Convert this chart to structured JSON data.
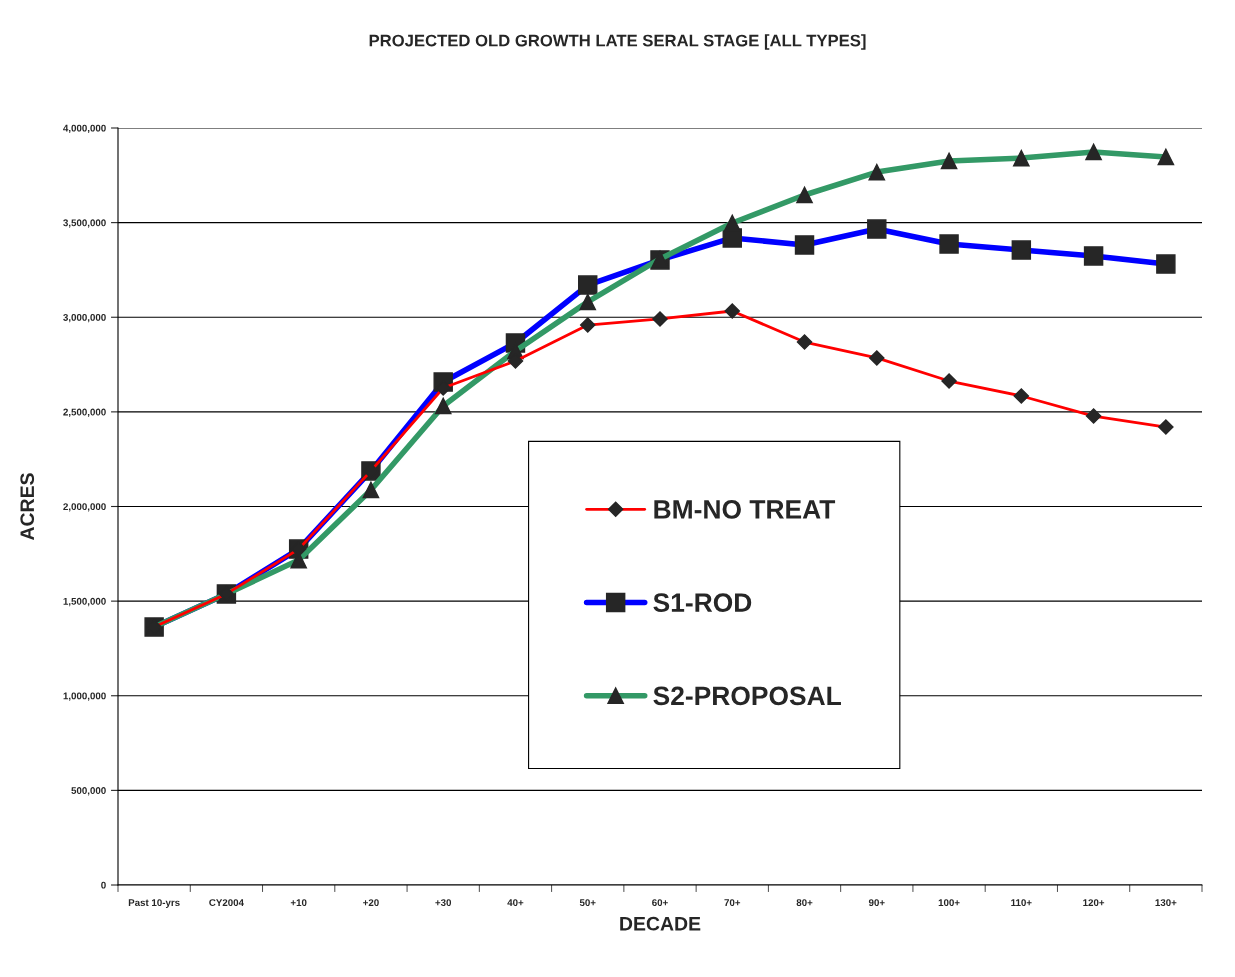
{
  "chart_data": {
    "type": "line",
    "title": "PROJECTED OLD GROWTH LATE SERAL STAGE [ALL TYPES]",
    "xlabel": "DECADE",
    "ylabel": "ACRES",
    "categories": [
      "Past 10-yrs",
      "CY2004",
      "+10",
      "+20",
      "+30",
      "40+",
      "50+",
      "60+",
      "70+",
      "80+",
      "90+",
      "100+",
      "110+",
      "120+",
      "130+"
    ],
    "series": [
      {
        "name": "BM-NO TREAT",
        "color": "#ff0000",
        "marker": "diamond",
        "values": [
          1363000,
          1538000,
          1775000,
          2188000,
          2626000,
          2769000,
          2959000,
          2991000,
          3033000,
          2869000,
          2785000,
          2663000,
          2584000,
          2478000,
          2420000
        ]
      },
      {
        "name": "S1-ROD",
        "color": "#0000ff",
        "marker": "square",
        "values": [
          1363000,
          1538000,
          1775000,
          2188000,
          2658000,
          2864000,
          3170000,
          3303000,
          3419000,
          3382000,
          3466000,
          3387000,
          3355000,
          3324000,
          3281000
        ]
      },
      {
        "name": "S2-PROPOSAL",
        "color": "#339966",
        "marker": "triangle",
        "values": [
          1363000,
          1538000,
          1717000,
          2087000,
          2531000,
          2822000,
          3081000,
          3308000,
          3498000,
          3646000,
          3767000,
          3826000,
          3841000,
          3873000,
          3847000
        ]
      }
    ],
    "ylim": [
      0,
      4000000
    ],
    "yticks": [
      {
        "value": 0,
        "label": "0"
      },
      {
        "value": 500000,
        "label": "500,000"
      },
      {
        "value": 1000000,
        "label": "1,000,000"
      },
      {
        "value": 1500000,
        "label": "1,500,000"
      },
      {
        "value": 2000000,
        "label": "2,000,000"
      },
      {
        "value": 2500000,
        "label": "2,500,000"
      },
      {
        "value": 3000000,
        "label": "3,000,000"
      },
      {
        "value": 3500000,
        "label": "3,500,000"
      },
      {
        "value": 4000000,
        "label": "4,000,000"
      }
    ],
    "grid": "y",
    "legend": "center"
  }
}
